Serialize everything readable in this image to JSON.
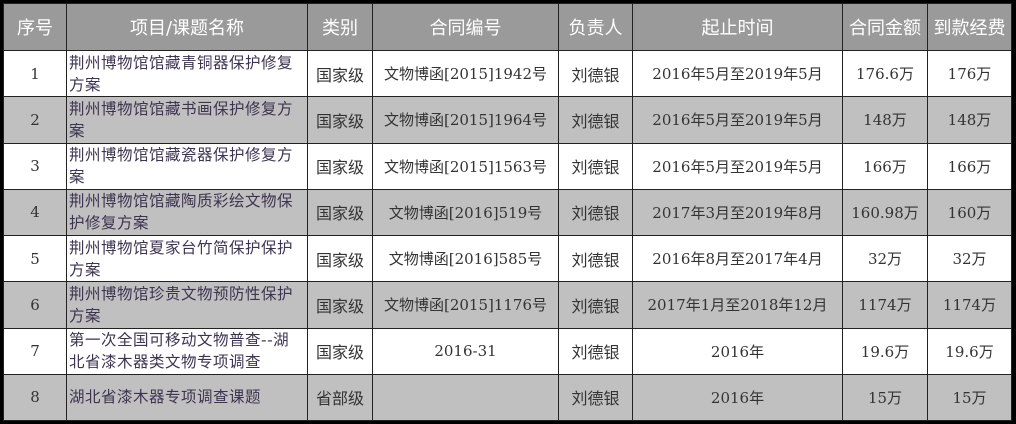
{
  "headers": [
    "序号",
    "项目/课题名称",
    "类别",
    "合同编号",
    "负责人",
    "起止时间",
    "合同金额",
    "到款经费"
  ],
  "rows": [
    {
      "no": "1",
      "name": "荆州博物馆馆藏青铜器保护修复方案",
      "category": "国家级",
      "contract": "文物博函[2015]1942号",
      "person": "刘德银",
      "period": "2016年5月至2019年5月",
      "amount": "176.6万",
      "received": "176万"
    },
    {
      "no": "2",
      "name": "荆州博物馆馆藏书画保护修复方案",
      "category": "国家级",
      "contract": "文物博函[2015]1964号",
      "person": "刘德银",
      "period": "2016年5月至2019年5月",
      "amount": "148万",
      "received": "148万"
    },
    {
      "no": "3",
      "name": "荆州博物馆馆藏瓷器保护修复方案",
      "category": "国家级",
      "contract": "文物博函[2015]1563号",
      "person": "刘德银",
      "period": "2016年5月至2019年5月",
      "amount": "166万",
      "received": "166万"
    },
    {
      "no": "4",
      "name": "荆州博物馆馆藏陶质彩绘文物保护修复方案",
      "category": "国家级",
      "contract": "文物博函[2016]519号",
      "person": "刘德银",
      "period": "2017年3月至2019年8月",
      "amount": "160.98万",
      "received": "160万"
    },
    {
      "no": "5",
      "name": "荆州博物馆夏家台竹简保护保护方案",
      "category": "国家级",
      "contract": "文物博函[2016]585号",
      "person": "刘德银",
      "period": "2016年8月至2017年4月",
      "amount": "32万",
      "received": "32万"
    },
    {
      "no": "6",
      "name": "荆州博物馆珍贵文物预防性保护方案",
      "category": "国家级",
      "contract": "文物博函[2015]1176号",
      "person": "刘德银",
      "period": "2017年1月至2018年12月",
      "amount": "1174万",
      "received": "1174万"
    },
    {
      "no": "7",
      "name": "第一次全国可移动文物普查--湖北省漆木器类文物专项调查",
      "category": "国家级",
      "contract": "2016-31",
      "person": "刘德银",
      "period": "2016年",
      "amount": "19.6万",
      "received": "19.6万"
    },
    {
      "no": "8",
      "name": "湖北省漆木器专项调查课题",
      "category": "省部级",
      "contract": "",
      "person": "刘德银",
      "period": "2016年",
      "amount": "15万",
      "received": "15万"
    }
  ]
}
